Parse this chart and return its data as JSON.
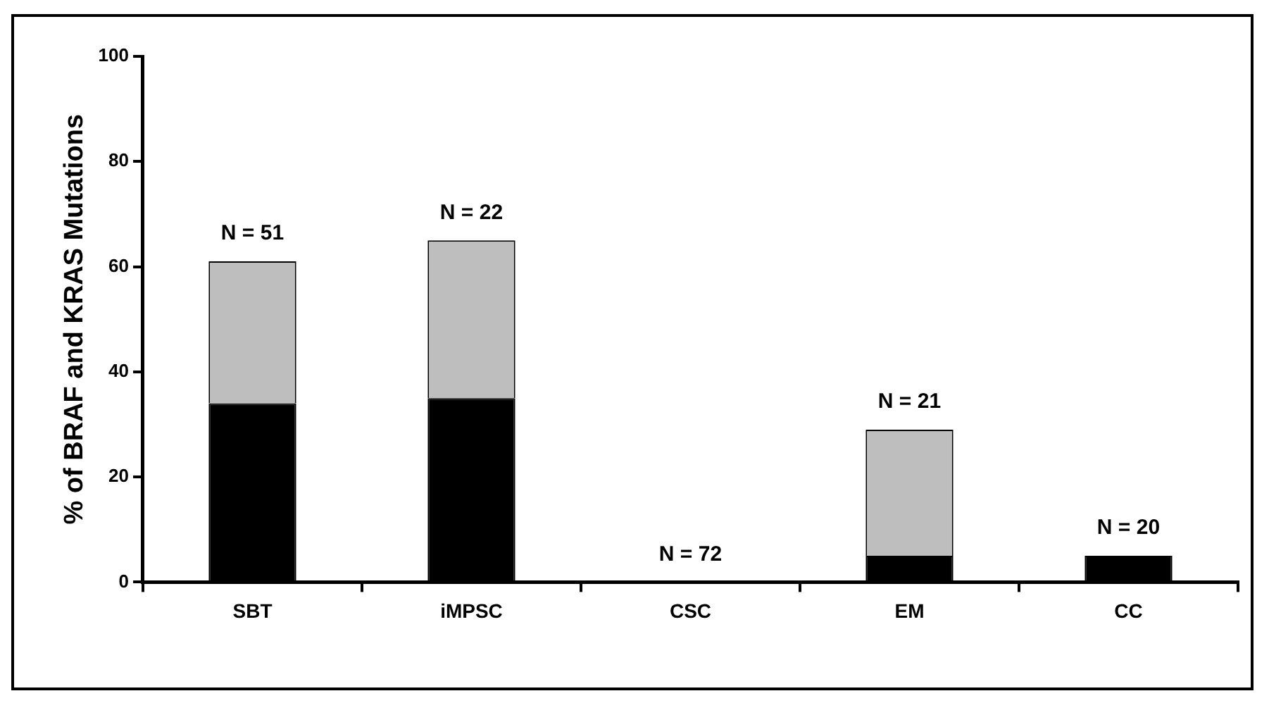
{
  "chart_data": {
    "type": "bar",
    "ylabel": "% of BRAF and KRAS Mutations",
    "categories": [
      "SBT",
      "iMPSC",
      "CSC",
      "EM",
      "CC"
    ],
    "stacked": true,
    "series": [
      {
        "color": "#000000",
        "values": [
          34,
          35,
          0,
          5,
          5
        ]
      },
      {
        "color": "#bebebe",
        "values": [
          27,
          30,
          0,
          24,
          0
        ]
      }
    ],
    "ylim": [
      0,
      100
    ],
    "yticks": [
      0,
      20,
      40,
      60,
      80,
      100
    ],
    "grid": false,
    "legend": false,
    "annotations": [
      {
        "text": "N = 51",
        "x": "SBT",
        "y": 61
      },
      {
        "text": "N = 22",
        "x": "iMPSC",
        "y": 65
      },
      {
        "text": "N = 72",
        "x": "CSC",
        "y": 0
      },
      {
        "text": "N = 21",
        "x": "EM",
        "y": 29
      },
      {
        "text": "N = 20",
        "x": "CC",
        "y": 5
      }
    ]
  }
}
